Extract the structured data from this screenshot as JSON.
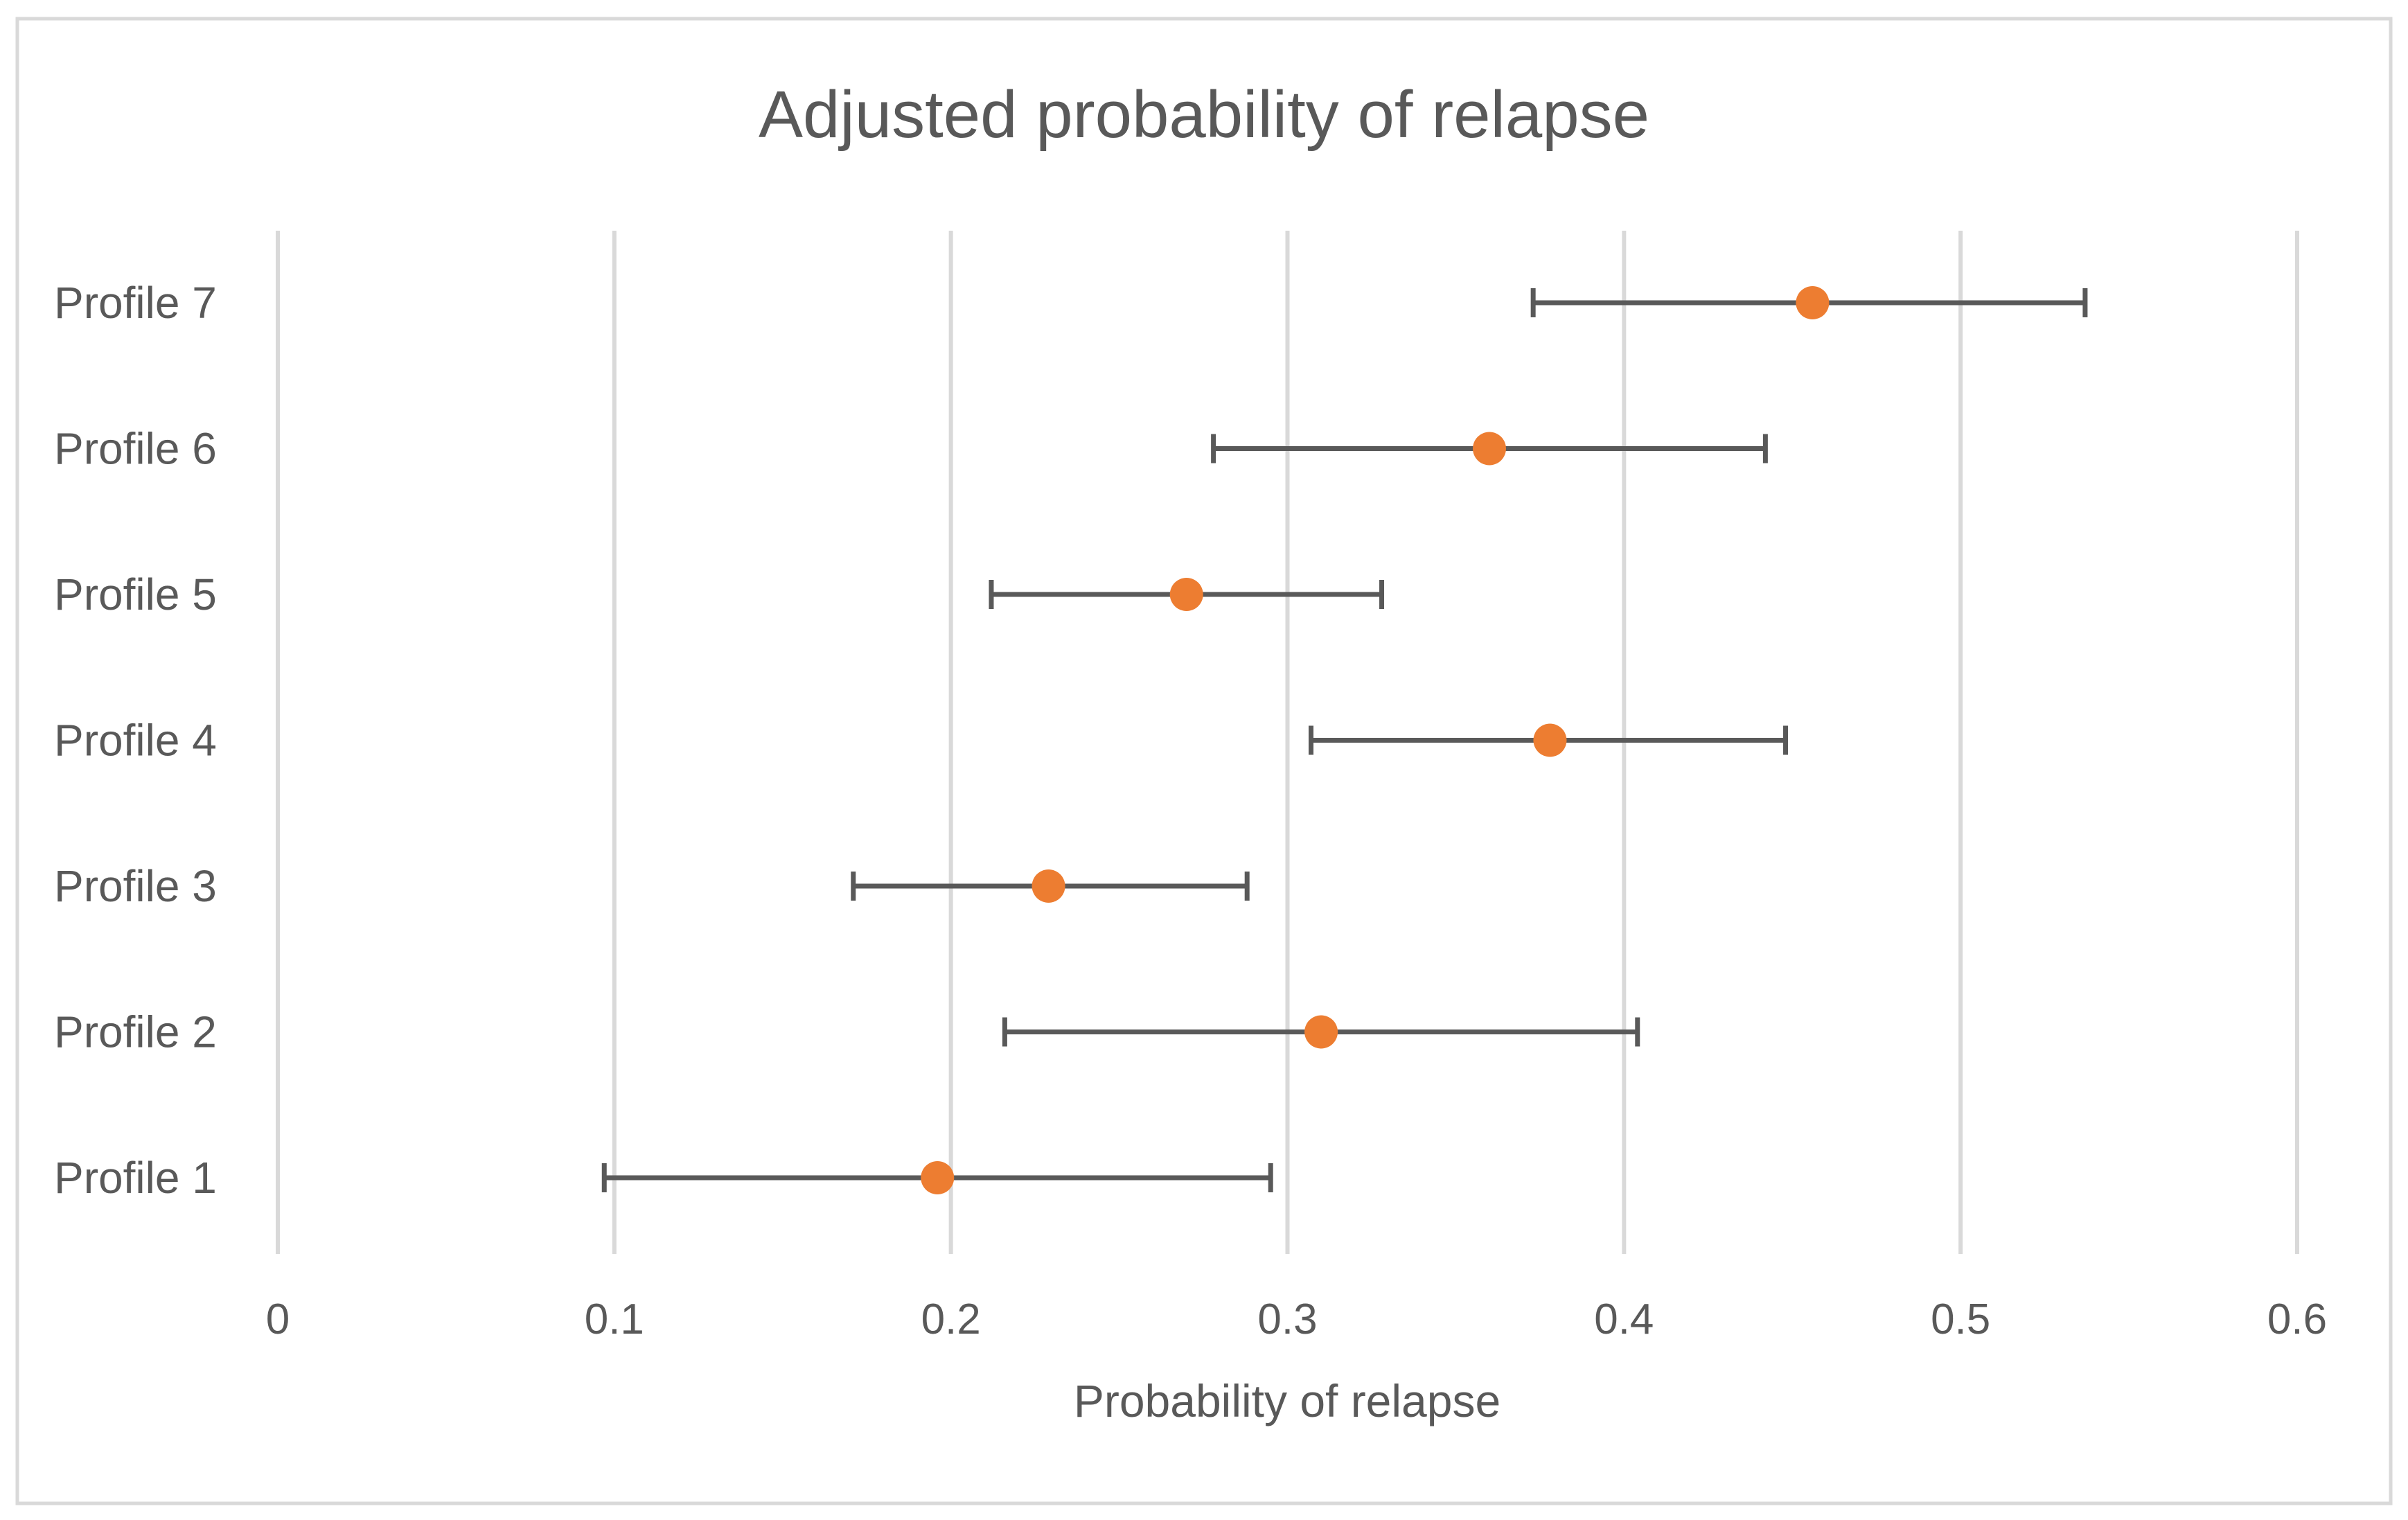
{
  "chart_data": {
    "type": "scatter",
    "title": "Adjusted probability of relapse",
    "xlabel": "Probability of relapse",
    "ylabel": "",
    "xlim": [
      0,
      0.6
    ],
    "x_ticks": [
      0,
      0.1,
      0.2,
      0.3,
      0.4,
      0.5,
      0.6
    ],
    "x_tick_labels": [
      "0",
      "0.1",
      "0.2",
      "0.3",
      "0.4",
      "0.5",
      "0.6"
    ],
    "grid": true,
    "legend": "none",
    "categories": [
      "Profile 1",
      "Profile 2",
      "Profile 3",
      "Profile 4",
      "Profile 5",
      "Profile 6",
      "Profile 7"
    ],
    "series": [
      {
        "name": "Adjusted probability",
        "values": [
          0.196,
          0.31,
          0.229,
          0.378,
          0.27,
          0.36,
          0.456
        ],
        "ci_lower": [
          0.097,
          0.216,
          0.171,
          0.307,
          0.212,
          0.278,
          0.373
        ],
        "ci_upper": [
          0.295,
          0.404,
          0.288,
          0.448,
          0.328,
          0.442,
          0.537
        ]
      }
    ],
    "colors": {
      "marker": "#ED7D31",
      "error_bar": "#595959",
      "gridline": "#D9D9D9",
      "text": "#595959",
      "border": "#D9D9D9"
    }
  }
}
